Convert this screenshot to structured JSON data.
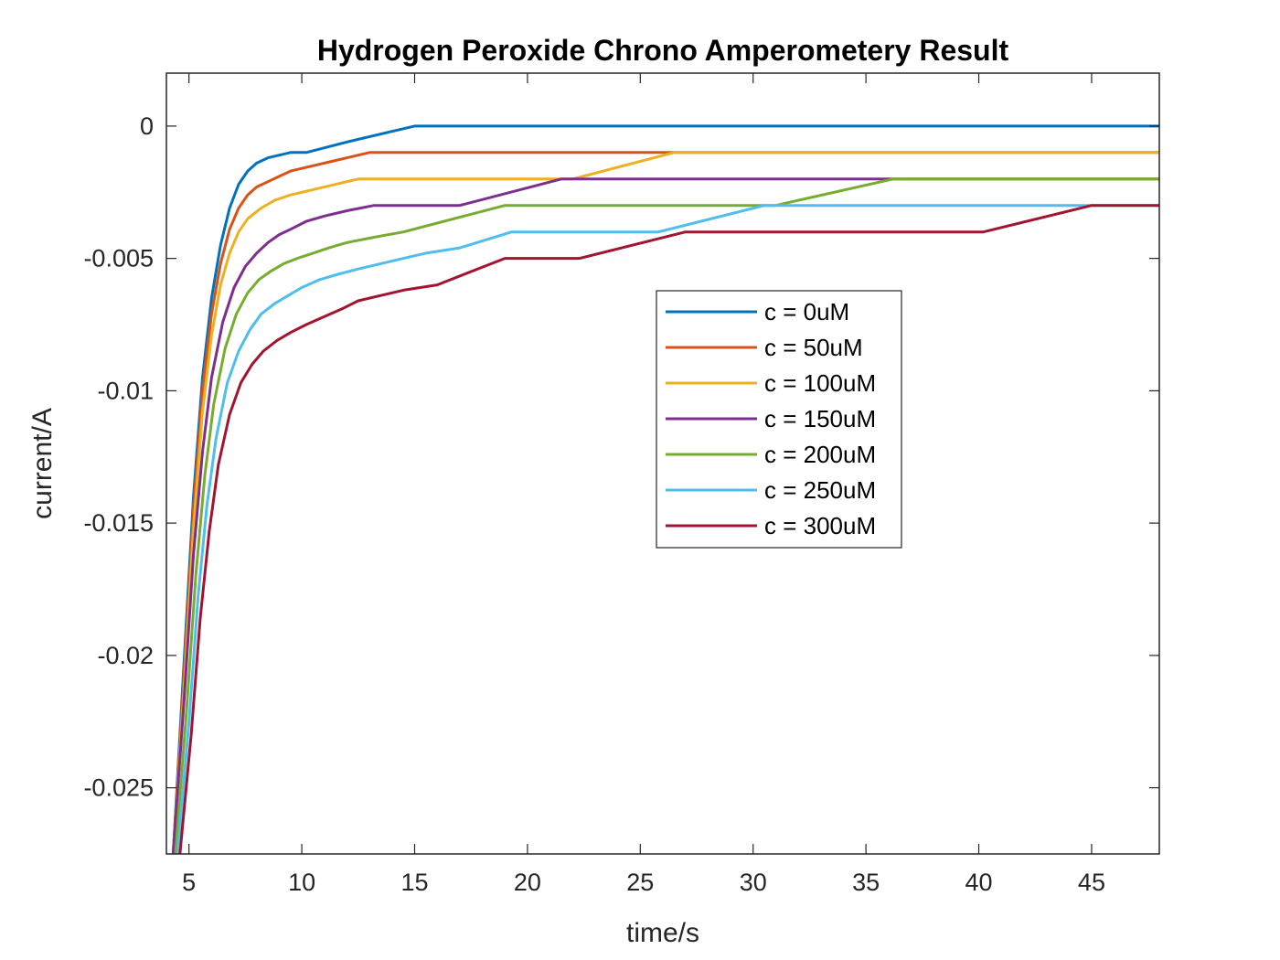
{
  "chart_data": {
    "type": "line",
    "title": "Hydrogen Peroxide Chrono Amperometery Result",
    "xlabel": "time/s",
    "ylabel": "current/A",
    "xlim": [
      4,
      48
    ],
    "ylim": [
      -0.0275,
      0.002
    ],
    "xticks": [
      5,
      10,
      15,
      20,
      25,
      30,
      35,
      40,
      45
    ],
    "xtick_labels": [
      "5",
      "10",
      "15",
      "20",
      "25",
      "30",
      "35",
      "40",
      "45"
    ],
    "yticks": [
      0,
      -0.005,
      -0.01,
      -0.015,
      -0.02,
      -0.025
    ],
    "ytick_labels": [
      "0",
      "-0.005",
      "-0.01",
      "-0.015",
      "-0.02",
      "-0.025"
    ],
    "grid": false,
    "legend_position": "center-right",
    "series": [
      {
        "name": "c = 0uM",
        "color": "#0072BD",
        "x": [
          4.3,
          4.8,
          5.2,
          5.6,
          6.0,
          6.4,
          6.8,
          7.2,
          7.6,
          8.0,
          8.5,
          9.0,
          9.5,
          10.2,
          12.0,
          14.0,
          15.0,
          48.0
        ],
        "y": [
          -0.0275,
          -0.02,
          -0.014,
          -0.0095,
          -0.0065,
          -0.0045,
          -0.0031,
          -0.0022,
          -0.0017,
          -0.0014,
          -0.0012,
          -0.0011,
          -0.001,
          -0.001,
          -0.0006,
          -0.0002,
          0.0,
          0.0
        ]
      },
      {
        "name": "c = 50uM",
        "color": "#D95319",
        "x": [
          4.3,
          4.8,
          5.2,
          5.6,
          6.0,
          6.4,
          6.8,
          7.2,
          7.6,
          8.0,
          8.5,
          9.0,
          9.5,
          10.5,
          11.5,
          12.5,
          13.0,
          48.0
        ],
        "y": [
          -0.0275,
          -0.0205,
          -0.0145,
          -0.01,
          -0.0071,
          -0.0052,
          -0.0039,
          -0.0031,
          -0.0026,
          -0.0023,
          -0.0021,
          -0.0019,
          -0.0017,
          -0.0015,
          -0.0013,
          -0.0011,
          -0.001,
          -0.001
        ]
      },
      {
        "name": "c = 100uM",
        "color": "#EDB120",
        "x": [
          4.3,
          4.8,
          5.2,
          5.6,
          6.0,
          6.4,
          6.8,
          7.2,
          7.6,
          8.2,
          8.8,
          9.5,
          10.5,
          11.5,
          12.5,
          22.0,
          26.5,
          48.0
        ],
        "y": [
          -0.0275,
          -0.021,
          -0.0152,
          -0.0108,
          -0.0079,
          -0.006,
          -0.0048,
          -0.004,
          -0.0035,
          -0.0031,
          -0.0028,
          -0.0026,
          -0.0024,
          -0.0022,
          -0.002,
          -0.002,
          -0.001,
          -0.001
        ]
      },
      {
        "name": "c = 150uM",
        "color": "#7E2F8E",
        "x": [
          4.3,
          4.8,
          5.2,
          5.6,
          6.0,
          6.5,
          7.0,
          7.5,
          8.0,
          8.5,
          9.0,
          9.5,
          10.2,
          11.0,
          12.0,
          13.2,
          17.0,
          21.5,
          48.0
        ],
        "y": [
          -0.0275,
          -0.0215,
          -0.0162,
          -0.0123,
          -0.0095,
          -0.0074,
          -0.0061,
          -0.0053,
          -0.0048,
          -0.0044,
          -0.0041,
          -0.0039,
          -0.0036,
          -0.0034,
          -0.0032,
          -0.003,
          -0.003,
          -0.002,
          -0.002
        ]
      },
      {
        "name": "c = 200uM",
        "color": "#77AC30",
        "x": [
          4.4,
          4.9,
          5.3,
          5.7,
          6.1,
          6.6,
          7.1,
          7.6,
          8.1,
          8.6,
          9.2,
          9.8,
          10.5,
          11.2,
          12.0,
          13.2,
          14.5,
          19.0,
          31.0,
          36.2,
          48.0
        ],
        "y": [
          -0.0275,
          -0.022,
          -0.017,
          -0.0132,
          -0.0105,
          -0.0084,
          -0.0071,
          -0.0063,
          -0.0058,
          -0.0055,
          -0.0052,
          -0.005,
          -0.0048,
          -0.0046,
          -0.0044,
          -0.0042,
          -0.004,
          -0.003,
          -0.003,
          -0.002,
          -0.002
        ]
      },
      {
        "name": "c = 250uM",
        "color": "#4DBEEE",
        "x": [
          4.5,
          5.0,
          5.4,
          5.8,
          6.2,
          6.7,
          7.2,
          7.7,
          8.2,
          8.8,
          9.4,
          10.0,
          10.8,
          11.6,
          12.5,
          13.5,
          14.5,
          15.5,
          17.0,
          19.3,
          25.8,
          30.5,
          45.0,
          48.0
        ],
        "y": [
          -0.0275,
          -0.0225,
          -0.0178,
          -0.0143,
          -0.0118,
          -0.0097,
          -0.0085,
          -0.0077,
          -0.0071,
          -0.0067,
          -0.0064,
          -0.0061,
          -0.0058,
          -0.0056,
          -0.0054,
          -0.0052,
          -0.005,
          -0.0048,
          -0.0046,
          -0.004,
          -0.004,
          -0.003,
          -0.003,
          -0.003
        ]
      },
      {
        "name": "c = 300uM",
        "color": "#A2142F",
        "x": [
          4.6,
          5.1,
          5.5,
          5.9,
          6.3,
          6.8,
          7.3,
          7.8,
          8.3,
          8.9,
          9.5,
          10.2,
          11.0,
          11.8,
          12.5,
          13.5,
          14.5,
          16.0,
          19.0,
          22.3,
          27.0,
          40.2,
          45.0,
          48.0
        ],
        "y": [
          -0.0275,
          -0.023,
          -0.0186,
          -0.0153,
          -0.0128,
          -0.0109,
          -0.0097,
          -0.009,
          -0.0085,
          -0.0081,
          -0.0078,
          -0.0075,
          -0.0072,
          -0.0069,
          -0.0066,
          -0.0064,
          -0.0062,
          -0.006,
          -0.005,
          -0.005,
          -0.004,
          -0.004,
          -0.003,
          -0.003
        ]
      }
    ]
  }
}
